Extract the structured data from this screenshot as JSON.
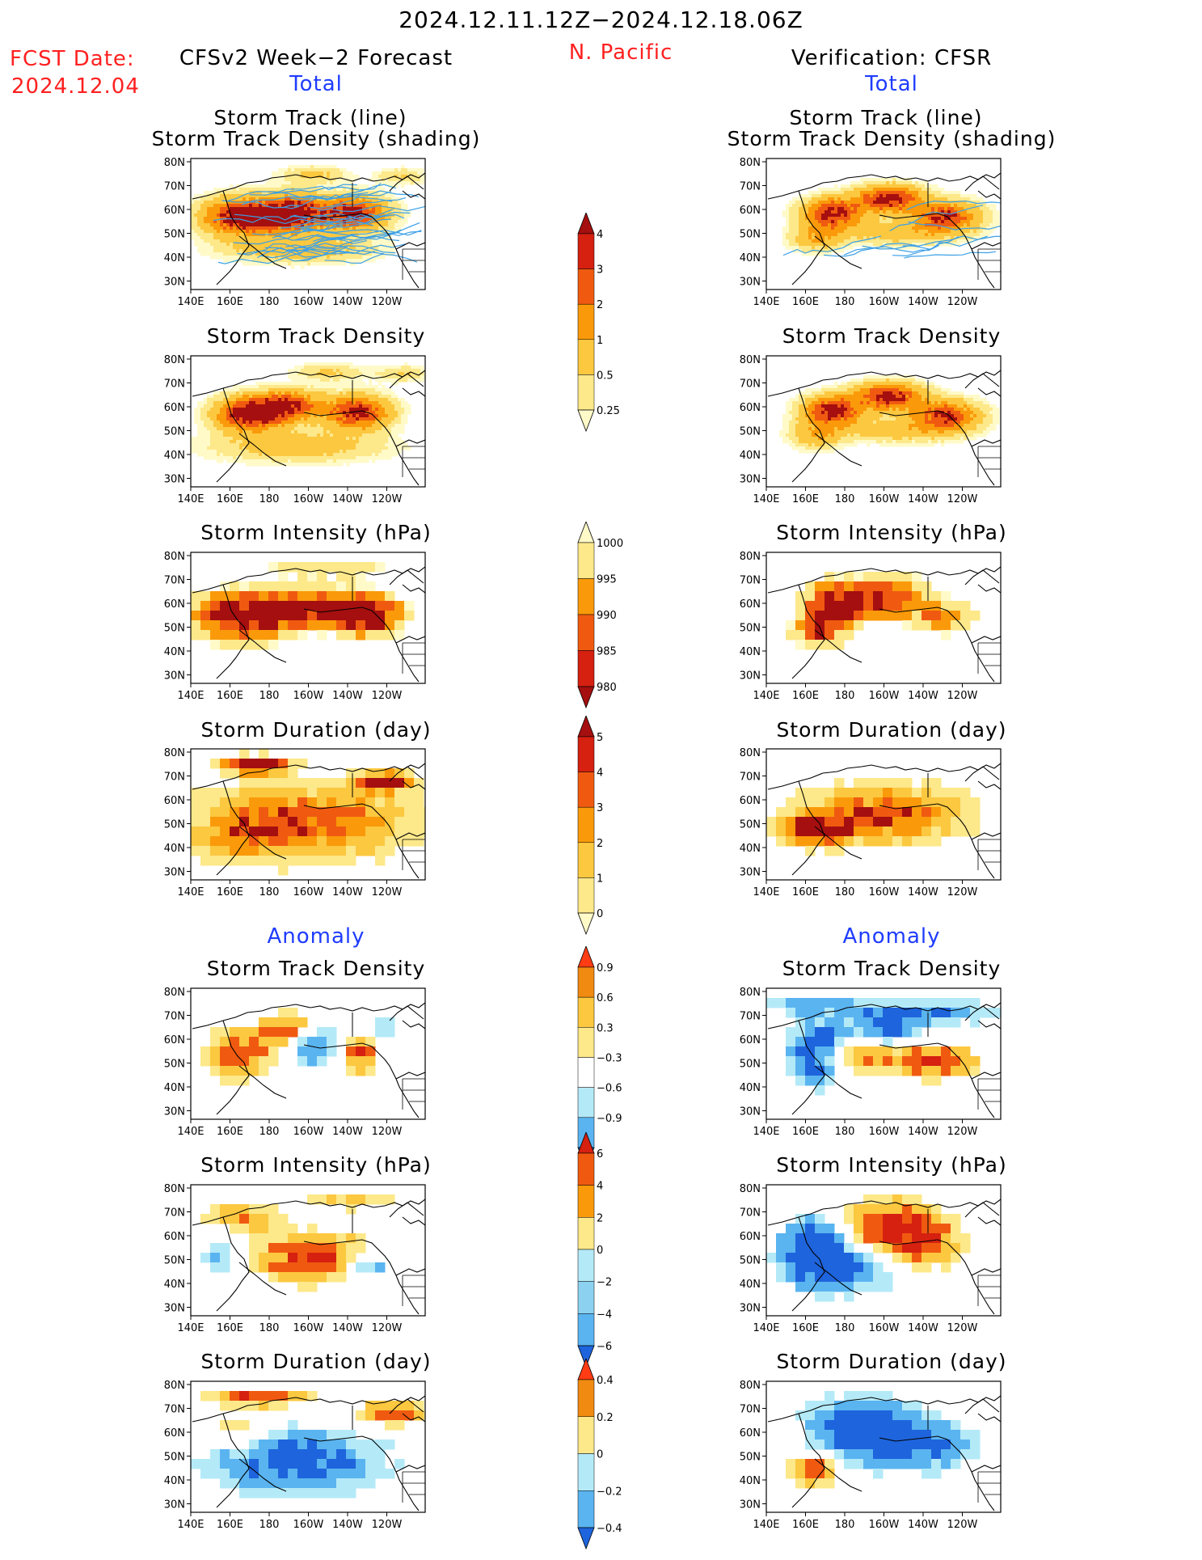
{
  "header": {
    "period": "2024.12.11.12Z−2024.12.18.06Z",
    "fcst_label": "FCST Date:",
    "fcst_date": "2024.12.04",
    "region": "N. Pacific",
    "left_title": "CFSv2 Week−2 Forecast",
    "right_title": "Verification: CFSR",
    "total_label": "Total",
    "anomaly_label": "Anomaly"
  },
  "axes": {
    "lat_ticks": [
      "80N",
      "70N",
      "60N",
      "50N",
      "40N",
      "30N"
    ],
    "lon_ticks": [
      "140E",
      "160E",
      "180",
      "160W",
      "140W",
      "120W"
    ]
  },
  "panels": {
    "track_line_title": "Storm Track (line)",
    "track_shade_title": "Storm Track Density (shading)",
    "density_title": "Storm Track Density",
    "intensity_title": "Storm Intensity (hPa)",
    "duration_title": "Storm Duration (day)"
  },
  "colorbars": [
    {
      "name": "density-total",
      "labels": [
        "4",
        "3",
        "2",
        "1",
        "0.5",
        "0.25"
      ],
      "colors": [
        "#a50f0f",
        "#d62010",
        "#f05a10",
        "#fa9a0a",
        "#fcc840",
        "#fde88a",
        "#fffac8"
      ]
    },
    {
      "name": "intensity-total",
      "labels": [
        "1000",
        "995",
        "990",
        "985",
        "980"
      ],
      "colors": [
        "#fffac8",
        "#fde88a",
        "#fa9a0a",
        "#f05a10",
        "#d62010",
        "#a50f0f"
      ]
    },
    {
      "name": "duration-total",
      "labels": [
        "5",
        "4",
        "3",
        "2",
        "1",
        "0"
      ],
      "colors": [
        "#a50f0f",
        "#d62010",
        "#f05a10",
        "#fa9a0a",
        "#fcc840",
        "#fde88a",
        "#fffac8"
      ]
    },
    {
      "name": "density-anom",
      "labels": [
        "0.9",
        "0.6",
        "0.3",
        "−0.3",
        "−0.6",
        "−0.9"
      ],
      "colors": [
        "#ff3c14",
        "#f08a10",
        "#fcc840",
        "#fde88a",
        "#ffffff",
        "#b4eaf8",
        "#5ab4f0",
        "#1e64dc"
      ]
    },
    {
      "name": "intensity-anom",
      "labels": [
        "6",
        "4",
        "2",
        "0",
        "−2",
        "−4",
        "−6"
      ],
      "colors": [
        "#d62010",
        "#f05a10",
        "#fa9a0a",
        "#fde88a",
        "#b4eaf8",
        "#8cd2f0",
        "#5ab4f0",
        "#1e64dc"
      ]
    },
    {
      "name": "duration-anom",
      "labels": [
        "0.4",
        "0.2",
        "0",
        "−0.2",
        "−0.4"
      ],
      "colors": [
        "#ff3c14",
        "#f08a10",
        "#fde88a",
        "#b4eaf8",
        "#5ab4f0",
        "#1e64dc"
      ]
    }
  ],
  "colors": {
    "dark_red": "#a50f0f",
    "red": "#d62010",
    "orange_red": "#f05a10",
    "orange": "#fa9a0a",
    "gold": "#fcc840",
    "yellow": "#fde88a",
    "pale": "#fffac8",
    "light_blue": "#b4eaf8",
    "mid_blue": "#5ab4f0",
    "blue": "#1e64dc",
    "track": "#3ca0e6"
  }
}
